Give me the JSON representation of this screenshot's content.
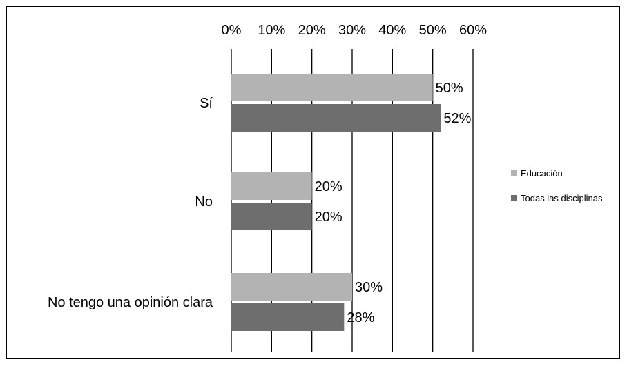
{
  "chart_data": {
    "type": "bar",
    "orientation": "horizontal",
    "title": "",
    "xlabel": "",
    "ylabel": "",
    "xlim": [
      0,
      60
    ],
    "x_ticks": [
      "0%",
      "10%",
      "20%",
      "30%",
      "40%",
      "50%",
      "60%"
    ],
    "grid": true,
    "legend_position": "right",
    "categories": [
      "Sí",
      "No",
      "No tengo una opinión clara"
    ],
    "series": [
      {
        "name": "Educación",
        "color": "#b3b3b3",
        "values": [
          50,
          20,
          30
        ],
        "labels": [
          "50%",
          "20%",
          "30%"
        ]
      },
      {
        "name": "Todas las disciplinas",
        "color": "#6e6e6e",
        "values": [
          52,
          20,
          28
        ],
        "labels": [
          "52%",
          "20%",
          "28%"
        ]
      }
    ]
  }
}
